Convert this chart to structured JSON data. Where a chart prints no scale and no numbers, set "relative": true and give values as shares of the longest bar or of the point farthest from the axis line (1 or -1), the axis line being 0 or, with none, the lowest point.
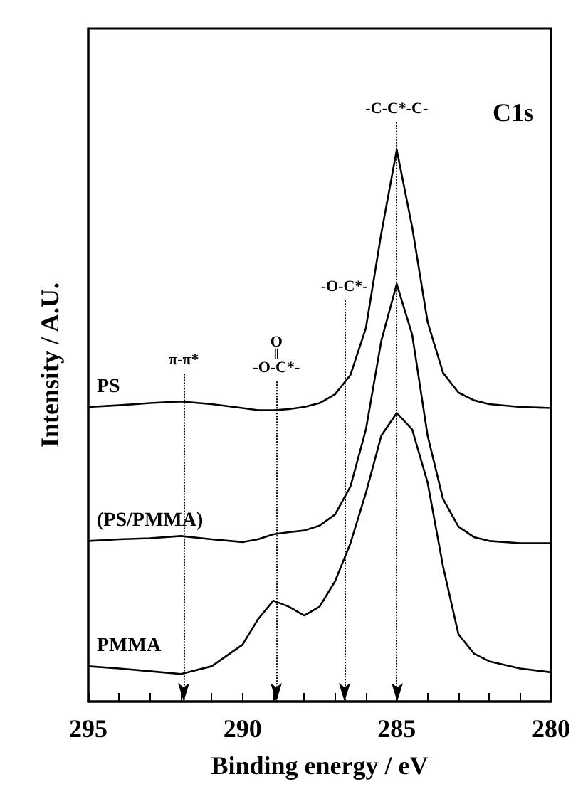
{
  "chart_data": {
    "type": "line",
    "relative": true,
    "xlabel": "Binding energy / eV",
    "ylabel": "Intensity / A.U.",
    "annotations": [
      "C1s"
    ],
    "x": [
      295,
      294,
      293,
      292,
      291,
      290,
      289.5,
      289,
      288.5,
      288,
      287.5,
      287,
      286.5,
      286,
      285.5,
      285,
      284.5,
      284,
      283.5,
      283,
      282.5,
      282,
      281,
      280
    ],
    "series": [
      {
        "name": "PS",
        "color": "#000000",
        "values": [
          0.534,
          0.537,
          0.541,
          0.544,
          0.539,
          0.532,
          0.528,
          0.528,
          0.53,
          0.534,
          0.541,
          0.557,
          0.592,
          0.677,
          0.849,
          1.0,
          0.86,
          0.688,
          0.596,
          0.56,
          0.546,
          0.539,
          0.534,
          0.532
        ]
      },
      {
        "name": "(PS/PMMA)",
        "color": "#000000",
        "values": [
          0.291,
          0.294,
          0.296,
          0.3,
          0.294,
          0.289,
          0.294,
          0.303,
          0.307,
          0.31,
          0.319,
          0.339,
          0.39,
          0.493,
          0.654,
          0.757,
          0.665,
          0.482,
          0.367,
          0.317,
          0.298,
          0.291,
          0.287,
          0.287
        ]
      },
      {
        "name": "PMMA",
        "color": "#000000",
        "values": [
          0.064,
          0.06,
          0.055,
          0.05,
          0.064,
          0.103,
          0.149,
          0.183,
          0.172,
          0.156,
          0.172,
          0.218,
          0.287,
          0.378,
          0.482,
          0.523,
          0.493,
          0.397,
          0.245,
          0.122,
          0.087,
          0.073,
          0.06,
          0.053
        ]
      }
    ],
    "xlim": [
      295,
      280
    ],
    "xticks": [
      295,
      {
        "value": 294,
        "label": null
      },
      {
        "value": 293,
        "label": null
      },
      {
        "value": 292,
        "label": null
      },
      {
        "value": 291,
        "label": null
      },
      290,
      {
        "value": 289,
        "label": null
      },
      {
        "value": 288,
        "label": null
      },
      {
        "value": 287,
        "label": null
      },
      {
        "value": 286,
        "label": null
      },
      285,
      {
        "value": 284,
        "label": null
      },
      {
        "value": 283,
        "label": null
      },
      {
        "value": 282,
        "label": null
      },
      {
        "value": 281,
        "label": null
      },
      280
    ],
    "ref_lines": [
      {
        "axis": "x",
        "value": 291.9,
        "label": "π-π*",
        "line_style": "dotted"
      },
      {
        "axis": "x",
        "value": 288.9,
        "label": "O\n‖\n-O-C*-",
        "line_style": "dotted"
      },
      {
        "axis": "x",
        "value": 286.7,
        "label": "-O-C*-",
        "line_style": "dotted"
      },
      {
        "axis": "x",
        "value": 285,
        "label": "-C-C*-C-",
        "line_style": "dotted"
      }
    ],
    "tick_labels": "x",
    "legend": false,
    "grid": false,
    "marker": "none",
    "line_style": "solid"
  }
}
